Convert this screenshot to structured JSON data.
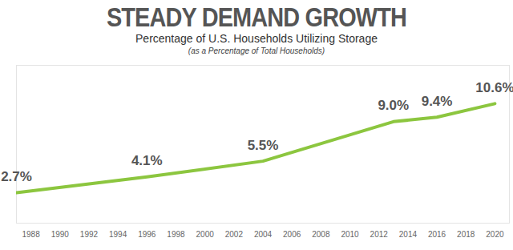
{
  "chart_data": {
    "type": "line",
    "title": "STEADY DEMAND GROWTH",
    "subtitle": "Percentage of U.S. Households Utilizing Storage",
    "annotations": [
      "(as a Percentage of Total Households)"
    ],
    "x": [
      1987,
      1996,
      2004,
      2013,
      2016,
      2020
    ],
    "values": [
      2.7,
      4.1,
      5.5,
      9.0,
      9.4,
      10.6
    ],
    "value_labels": [
      "2.7%",
      "4.1%",
      "5.5%",
      "9.0%",
      "9.4%",
      "10.6%"
    ],
    "color": "#8cc63f",
    "xlim": [
      1987,
      2021
    ],
    "xticks": [
      1988,
      1990,
      1992,
      1994,
      1996,
      1998,
      2000,
      2002,
      2004,
      2006,
      2008,
      2010,
      2012,
      2014,
      2016,
      2018,
      2020
    ],
    "ylim": [
      0,
      14
    ],
    "data_labels": true,
    "tick_labels": "x",
    "grid": false
  }
}
